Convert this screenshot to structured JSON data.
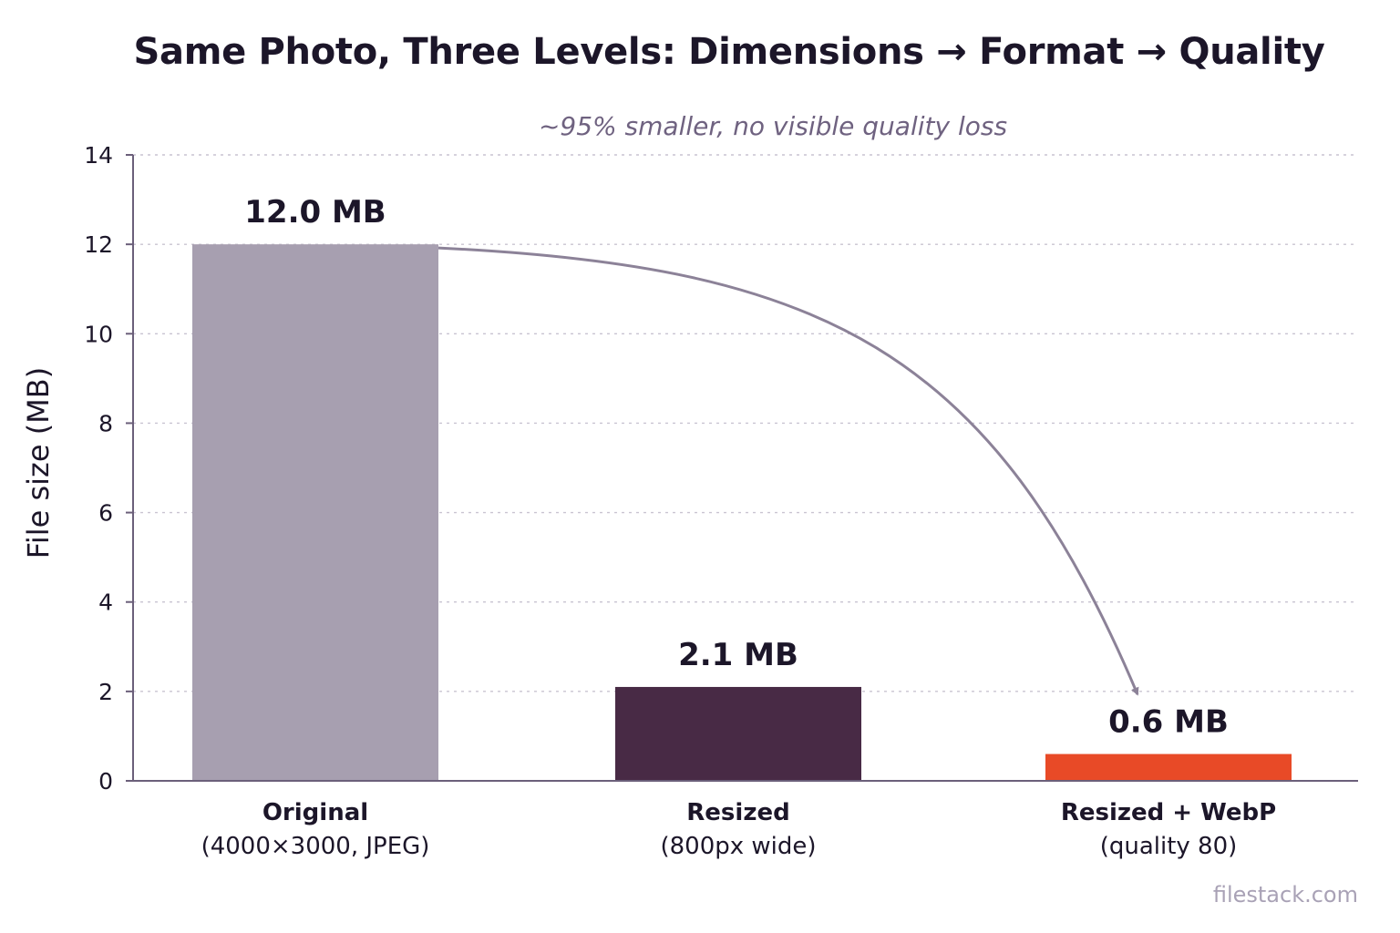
{
  "chart_data": {
    "type": "bar",
    "title": "Same Photo, Three Levels: Dimensions → Format → Quality",
    "subtitle": "~95% smaller, no visible quality loss",
    "ylabel": "File size (MB)",
    "xlabel": "",
    "ylim": [
      0,
      14
    ],
    "yticks": [
      0,
      2,
      4,
      6,
      8,
      10,
      12,
      14
    ],
    "grid": true,
    "categories": [
      {
        "name": "Original",
        "detail": "(4000×3000, JPEG)"
      },
      {
        "name": "Resized",
        "detail": "(800px wide)"
      },
      {
        "name": "Resized + WebP",
        "detail": "(quality 80)"
      }
    ],
    "values": [
      12.0,
      2.1,
      0.6
    ],
    "value_labels": [
      "12.0 MB",
      "2.1 MB",
      "0.6 MB"
    ],
    "bar_colors": [
      "#a79fb0",
      "#482a45",
      "#e84a27"
    ],
    "annotation": "curved arrow from Original bar to Resized + WebP bar"
  },
  "colors": {
    "title": "#1c1629",
    "subtitle": "#6f6280",
    "axis": "#6b5f7a",
    "grid": "#c9c4d1",
    "arrow": "#8c8298"
  },
  "watermark": "filestack.com"
}
